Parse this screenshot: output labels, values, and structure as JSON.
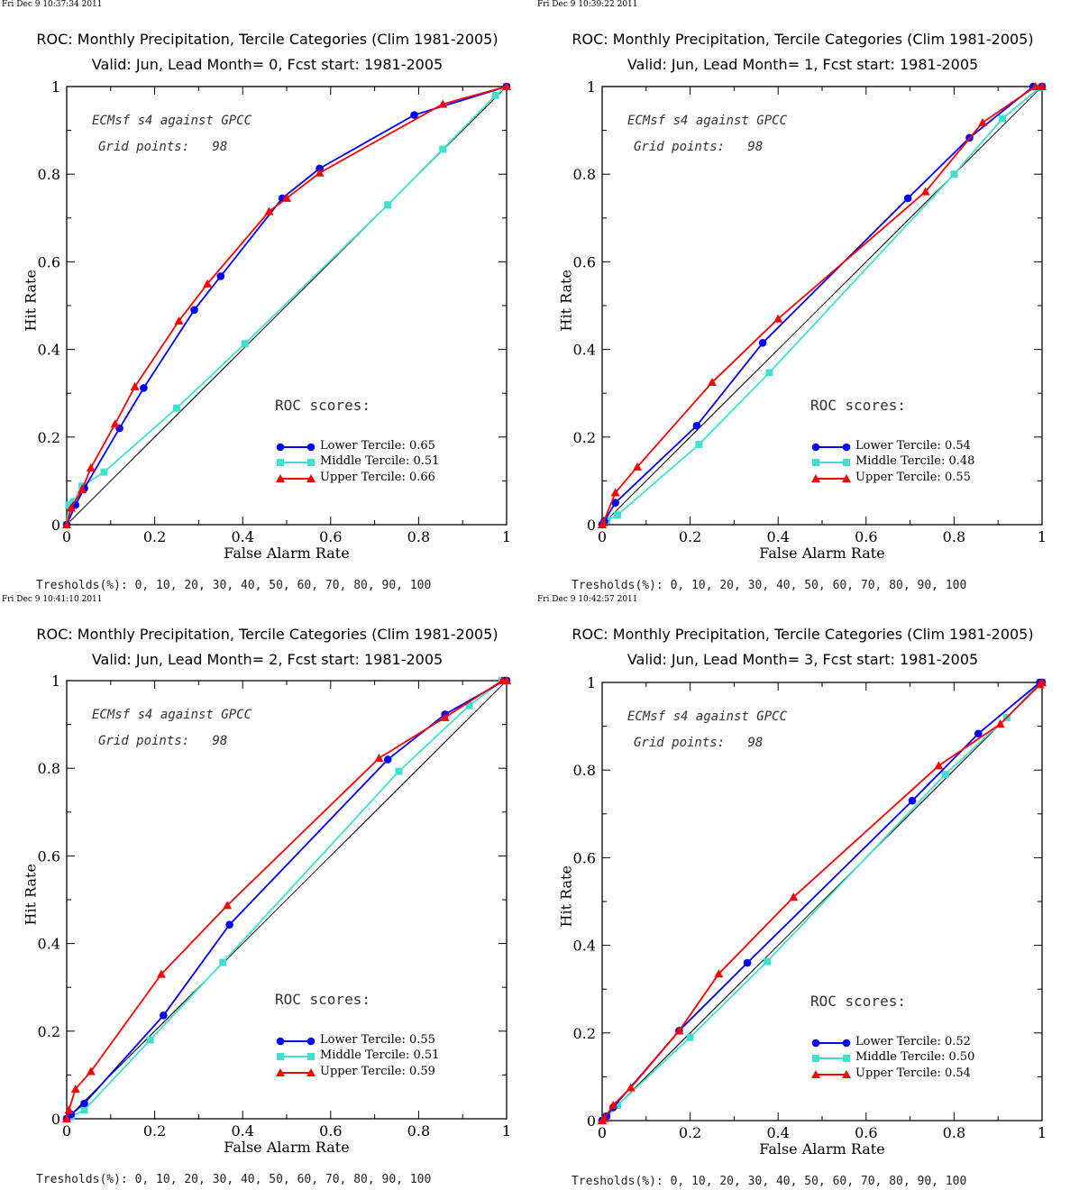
{
  "chart_data": [
    {
      "type": "line",
      "timestamp": "Fri Dec  9 10:37:34 2011",
      "title": "ROC: Monthly Precipitation, Tercile Categories (Clim 1981-2005)",
      "subtitle": "Valid: Jun, Lead Month= 0, Fcst start: 1981-2005",
      "xlabel": "False Alarm Rate",
      "ylabel": "Hit Rate",
      "xlim": [
        0,
        1
      ],
      "ylim": [
        0,
        1
      ],
      "annotation_model": "ECMsf s4 against GPCC",
      "annotation_grid": "Grid points:   98",
      "roc_heading": "ROC scores:",
      "thresholds": "Tresholds(%): 0, 10, 20, 30, 40, 50, 60, 70, 80, 90, 100",
      "xticks": [
        "0",
        "0.2",
        "0.4",
        "0.6",
        "0.8",
        "1"
      ],
      "yticks": [
        "0",
        "0.2",
        "0.4",
        "0.6",
        "0.8",
        "1"
      ],
      "series": [
        {
          "name": "Lower Tercile: 0.65",
          "color": "#0000ff",
          "marker": "circle",
          "x": [
            0,
            0.02,
            0.04,
            0.12,
            0.175,
            0.29,
            0.35,
            0.49,
            0.575,
            0.79,
            1.0
          ],
          "y": [
            0,
            0.045,
            0.083,
            0.22,
            0.312,
            0.49,
            0.567,
            0.745,
            0.813,
            0.935,
            1.0
          ]
        },
        {
          "name": "Middle Tercile: 0.51",
          "color": "#40e0d0",
          "marker": "square",
          "x": [
            0,
            0.005,
            0.015,
            0.035,
            0.085,
            0.25,
            0.405,
            0.73,
            0.855,
            0.975,
            1.0
          ],
          "y": [
            0,
            0.045,
            0.052,
            0.088,
            0.12,
            0.266,
            0.413,
            0.73,
            0.857,
            0.98,
            1.0
          ]
        },
        {
          "name": "Upper Tercile: 0.66",
          "color": "#ff0000",
          "marker": "triangle",
          "x": [
            0,
            0.01,
            0.035,
            0.055,
            0.11,
            0.155,
            0.255,
            0.32,
            0.46,
            0.5,
            0.575,
            0.855,
            1.0
          ],
          "y": [
            0,
            0.038,
            0.08,
            0.13,
            0.23,
            0.315,
            0.465,
            0.55,
            0.715,
            0.745,
            0.803,
            0.96,
            1.0
          ]
        }
      ]
    },
    {
      "type": "line",
      "timestamp": "Fri Dec  9 10:39:22 2011",
      "title": "ROC: Monthly Precipitation, Tercile Categories (Clim 1981-2005)",
      "subtitle": "Valid: Jun, Lead Month= 1, Fcst start: 1981-2005",
      "xlabel": "False Alarm Rate",
      "ylabel": "Hit Rate",
      "xlim": [
        0,
        1
      ],
      "ylim": [
        0,
        1
      ],
      "annotation_model": "ECMsf s4 against GPCC",
      "annotation_grid": "Grid points:   98",
      "roc_heading": "ROC scores:",
      "thresholds": "Tresholds(%): 0, 10, 20, 30, 40, 50, 60, 70, 80, 90, 100",
      "xticks": [
        "0",
        "0.2",
        "0.4",
        "0.6",
        "0.8",
        "1"
      ],
      "yticks": [
        "0",
        "0.2",
        "0.4",
        "0.6",
        "0.8",
        "1"
      ],
      "series": [
        {
          "name": "Lower Tercile: 0.54",
          "color": "#0000ff",
          "marker": "circle",
          "x": [
            0,
            0.005,
            0.03,
            0.215,
            0.365,
            0.695,
            0.835,
            0.98,
            1.0
          ],
          "y": [
            0,
            0.008,
            0.05,
            0.226,
            0.415,
            0.745,
            0.883,
            1.0,
            1.0
          ]
        },
        {
          "name": "Middle Tercile: 0.48",
          "color": "#40e0d0",
          "marker": "square",
          "x": [
            0,
            0.01,
            0.035,
            0.22,
            0.38,
            0.8,
            0.91,
            0.995,
            1.0
          ],
          "y": [
            0,
            0.01,
            0.022,
            0.183,
            0.347,
            0.8,
            0.927,
            0.998,
            1.0
          ]
        },
        {
          "name": "Upper Tercile: 0.55",
          "color": "#ff0000",
          "marker": "triangle",
          "x": [
            0,
            0.003,
            0.03,
            0.08,
            0.25,
            0.4,
            0.735,
            0.865,
            0.985,
            1.0
          ],
          "y": [
            0,
            0.005,
            0.073,
            0.132,
            0.325,
            0.47,
            0.76,
            0.918,
            1.0,
            1.0
          ]
        }
      ]
    },
    {
      "type": "line",
      "timestamp": "Fri Dec  9 10:41:10 2011",
      "title": "ROC: Monthly Precipitation, Tercile Categories (Clim 1981-2005)",
      "subtitle": "Valid: Jun, Lead Month= 2, Fcst start: 1981-2005",
      "xlabel": "False Alarm Rate",
      "ylabel": "Hit Rate",
      "xlim": [
        0,
        1
      ],
      "ylim": [
        0,
        1
      ],
      "annotation_model": "ECMsf s4 against GPCC",
      "annotation_grid": "Grid points:   98",
      "roc_heading": "ROC scores:",
      "thresholds": "Tresholds(%): 0, 10, 20, 30, 40, 50, 60, 70, 80, 90, 100",
      "xticks": [
        "0",
        "0.2",
        "0.4",
        "0.6",
        "0.8",
        "1"
      ],
      "yticks": [
        "0",
        "0.2",
        "0.4",
        "0.6",
        "0.8",
        "1"
      ],
      "series": [
        {
          "name": "Lower Tercile: 0.55",
          "color": "#0000ff",
          "marker": "circle",
          "x": [
            0,
            0.01,
            0.04,
            0.22,
            0.37,
            0.73,
            0.86,
            0.995,
            1.0
          ],
          "y": [
            0,
            0.01,
            0.035,
            0.236,
            0.443,
            0.82,
            0.923,
            1.0,
            1.0
          ]
        },
        {
          "name": "Middle Tercile: 0.51",
          "color": "#40e0d0",
          "marker": "square",
          "x": [
            0,
            0.01,
            0.04,
            0.19,
            0.355,
            0.755,
            0.915,
            0.99,
            1.0
          ],
          "y": [
            0,
            0.005,
            0.02,
            0.18,
            0.357,
            0.793,
            0.943,
            1.0,
            1.0
          ]
        },
        {
          "name": "Upper Tercile: 0.59",
          "color": "#ff0000",
          "marker": "triangle",
          "x": [
            0,
            0.005,
            0.02,
            0.055,
            0.215,
            0.365,
            0.71,
            0.86,
            0.99,
            1.0
          ],
          "y": [
            0,
            0.02,
            0.068,
            0.108,
            0.33,
            0.487,
            0.823,
            0.916,
            1.0,
            1.0
          ]
        }
      ]
    },
    {
      "type": "line",
      "timestamp": "Fri Dec  9 10:42:57 2011",
      "title": "ROC: Monthly Precipitation, Tercile Categories (Clim 1981-2005)",
      "subtitle": "Valid: Jun, Lead Month= 3, Fcst start: 1981-2005",
      "xlabel": "False Alarm Rate",
      "ylabel": "Hit Rate",
      "xlim": [
        0,
        1
      ],
      "ylim": [
        0,
        1
      ],
      "annotation_model": "ECMsf s4 against GPCC",
      "annotation_grid": "Grid points:   98",
      "roc_heading": "ROC scores:",
      "thresholds": "Tresholds(%): 0, 10, 20, 30, 40, 50, 60, 70, 80, 90, 100",
      "xticks": [
        "0",
        "0.2",
        "0.4",
        "0.6",
        "0.8",
        "1"
      ],
      "yticks": [
        "0",
        "0.2",
        "0.4",
        "0.6",
        "0.8",
        "1"
      ],
      "series": [
        {
          "name": "Lower Tercile: 0.52",
          "color": "#0000ff",
          "marker": "circle",
          "x": [
            0,
            0.01,
            0.025,
            0.175,
            0.33,
            0.705,
            0.855,
            0.995,
            1.0
          ],
          "y": [
            0,
            0.01,
            0.03,
            0.205,
            0.36,
            0.73,
            0.883,
            1.0,
            1.0
          ]
        },
        {
          "name": "Middle Tercile: 0.50",
          "color": "#40e0d0",
          "marker": "square",
          "x": [
            0,
            0.01,
            0.035,
            0.2,
            0.375,
            0.78,
            0.92,
            0.995,
            1.0
          ],
          "y": [
            0,
            0.01,
            0.035,
            0.19,
            0.363,
            0.79,
            0.92,
            1.0,
            1.0
          ]
        },
        {
          "name": "Upper Tercile: 0.54",
          "color": "#ff0000",
          "marker": "triangle",
          "x": [
            0,
            0.005,
            0.025,
            0.065,
            0.175,
            0.265,
            0.435,
            0.765,
            0.905,
            0.995,
            1.0
          ],
          "y": [
            0,
            0.005,
            0.035,
            0.075,
            0.205,
            0.335,
            0.51,
            0.81,
            0.905,
            0.995,
            1.0
          ]
        }
      ]
    }
  ]
}
